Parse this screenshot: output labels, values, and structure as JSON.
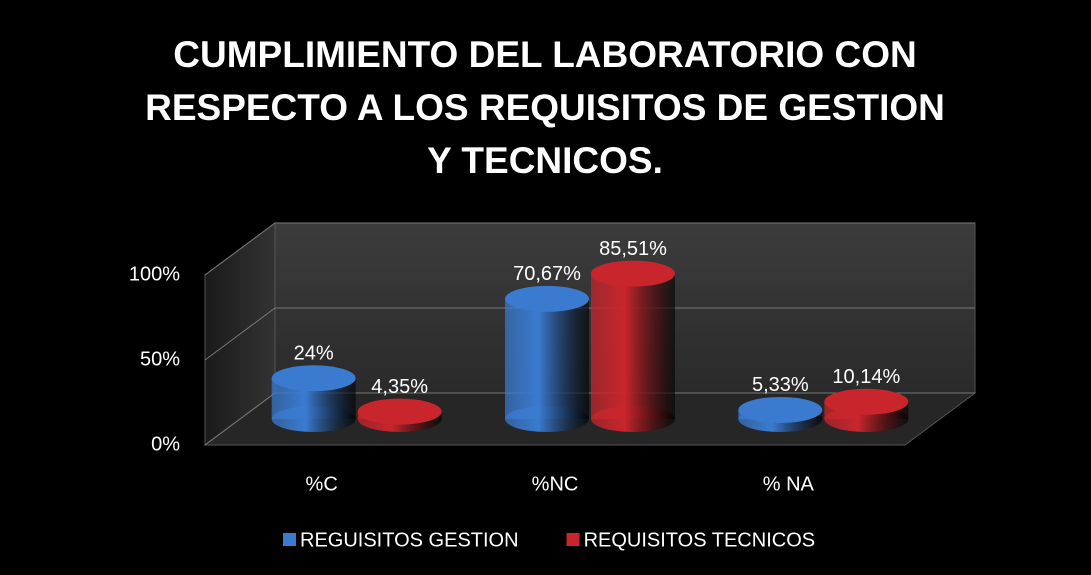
{
  "chart_data": {
    "type": "bar3d",
    "title": "CUMPLIMIENTO  DEL LABORATORIO CON RESPECTO  A LOS REQUISITOS DE GESTION Y TECNICOS.",
    "categories": [
      "%C",
      "%NC",
      "% NA"
    ],
    "series": [
      {
        "name": "REGUISITOS GESTION",
        "color": "#3a7bd0",
        "values": [
          24,
          70.67,
          5.33
        ],
        "value_labels": [
          "24%",
          "70,67%",
          "5,33%"
        ]
      },
      {
        "name": "REQUISITOS TECNICOS",
        "color": "#c8262c",
        "values": [
          4.35,
          85.51,
          10.14
        ],
        "value_labels": [
          "4,35%",
          "85,51%",
          "10,14%"
        ]
      }
    ],
    "ylim": [
      0,
      100
    ],
    "yticks": [
      {
        "value": 0,
        "label": "0%"
      },
      {
        "value": 50,
        "label": "50%"
      },
      {
        "value": 100,
        "label": "100%"
      }
    ],
    "grid": true,
    "legend": "bottom"
  }
}
